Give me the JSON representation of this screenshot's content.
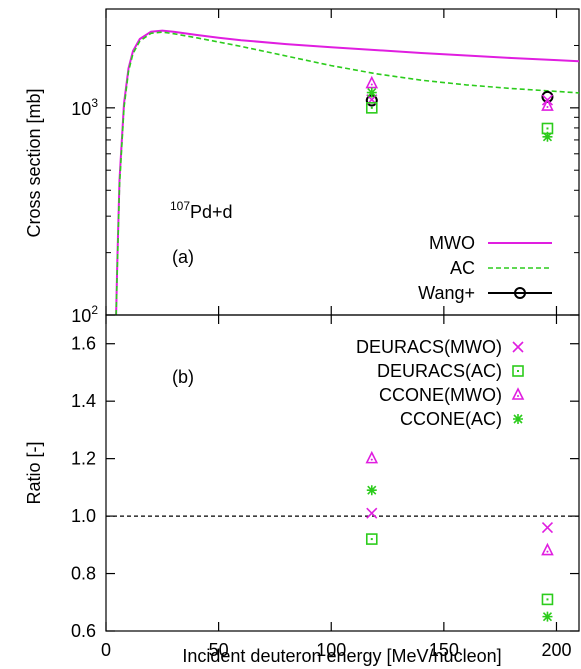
{
  "colors": {
    "mwo": "#e01ee0",
    "ac": "#2ccc1c",
    "wang": "#000000",
    "unity": "#000000"
  },
  "chart_data": [
    {
      "type": "line",
      "panel_label": "(a)",
      "annotation": {
        "sup": "107",
        "text": "Pd+d"
      },
      "ylabel": "Cross section [mb]",
      "yscale": "log",
      "xlim": [
        0,
        210
      ],
      "ylim": [
        100,
        3000
      ],
      "x_ticks": [
        0,
        50,
        100,
        150,
        200
      ],
      "y_tick_labels": [
        {
          "value": 100,
          "base": "10",
          "exp": "2"
        },
        {
          "value": 1000,
          "base": "10",
          "exp": "3"
        }
      ],
      "legend": {
        "position": "bottom-right",
        "entries": [
          "MWO",
          "AC",
          "Wang+"
        ]
      },
      "series": [
        {
          "name": "MWO",
          "style": "solid",
          "x": [
            4.5,
            5,
            6,
            8,
            10,
            12,
            15,
            20,
            25,
            30,
            40,
            50,
            60,
            80,
            100,
            120,
            140,
            160,
            180,
            200,
            210
          ],
          "y": [
            100,
            180,
            450,
            1050,
            1550,
            1880,
            2150,
            2330,
            2360,
            2330,
            2250,
            2180,
            2120,
            2030,
            1960,
            1900,
            1840,
            1790,
            1740,
            1700,
            1680
          ]
        },
        {
          "name": "AC",
          "style": "dashed",
          "x": [
            4.5,
            5,
            6,
            8,
            10,
            12,
            15,
            20,
            25,
            30,
            40,
            50,
            60,
            80,
            100,
            120,
            140,
            160,
            180,
            200,
            210
          ],
          "y": [
            100,
            170,
            420,
            1000,
            1500,
            1830,
            2100,
            2290,
            2320,
            2280,
            2180,
            2080,
            1980,
            1780,
            1600,
            1460,
            1360,
            1290,
            1240,
            1200,
            1180
          ]
        },
        {
          "name": "Wang+",
          "style": "points-circle",
          "x": [
            118,
            196
          ],
          "y": [
            1085,
            1130
          ]
        },
        {
          "name": "DEURACS(MWO)",
          "style": "x",
          "x": [
            118,
            196
          ],
          "y": [
            1095,
            1090
          ]
        },
        {
          "name": "DEURACS(AC)",
          "style": "square",
          "x": [
            118,
            196
          ],
          "y": [
            1000,
            795
          ]
        },
        {
          "name": "CCONE(MWO)",
          "style": "triangle",
          "x": [
            118,
            196
          ],
          "y": [
            1310,
            1020
          ]
        },
        {
          "name": "CCONE(AC)",
          "style": "star",
          "x": [
            118,
            196
          ],
          "y": [
            1185,
            725
          ]
        }
      ]
    },
    {
      "type": "scatter",
      "panel_label": "(b)",
      "xlabel": "Incident deuteron energy [MeV/nucleon]",
      "ylabel": "Ratio [-]",
      "xlim": [
        0,
        210
      ],
      "ylim": [
        0.6,
        1.7
      ],
      "x_ticks": [
        0,
        50,
        100,
        150,
        200
      ],
      "y_ticks": [
        "0.6",
        "0.8",
        "1.0",
        "1.2",
        "1.4",
        "1.6"
      ],
      "reference_line": 1.0,
      "legend": {
        "position": "top-right",
        "entries": [
          "DEURACS(MWO)",
          "DEURACS(AC)",
          "CCONE(MWO)",
          "CCONE(AC)"
        ]
      },
      "series": [
        {
          "name": "DEURACS(MWO)",
          "style": "x",
          "x": [
            118,
            196
          ],
          "y": [
            1.01,
            0.96
          ]
        },
        {
          "name": "DEURACS(AC)",
          "style": "square",
          "x": [
            118,
            196
          ],
          "y": [
            0.92,
            0.71
          ]
        },
        {
          "name": "CCONE(MWO)",
          "style": "triangle",
          "x": [
            118,
            196
          ],
          "y": [
            1.2,
            0.88
          ]
        },
        {
          "name": "CCONE(AC)",
          "style": "star",
          "x": [
            118,
            196
          ],
          "y": [
            1.09,
            0.65
          ]
        }
      ]
    }
  ]
}
